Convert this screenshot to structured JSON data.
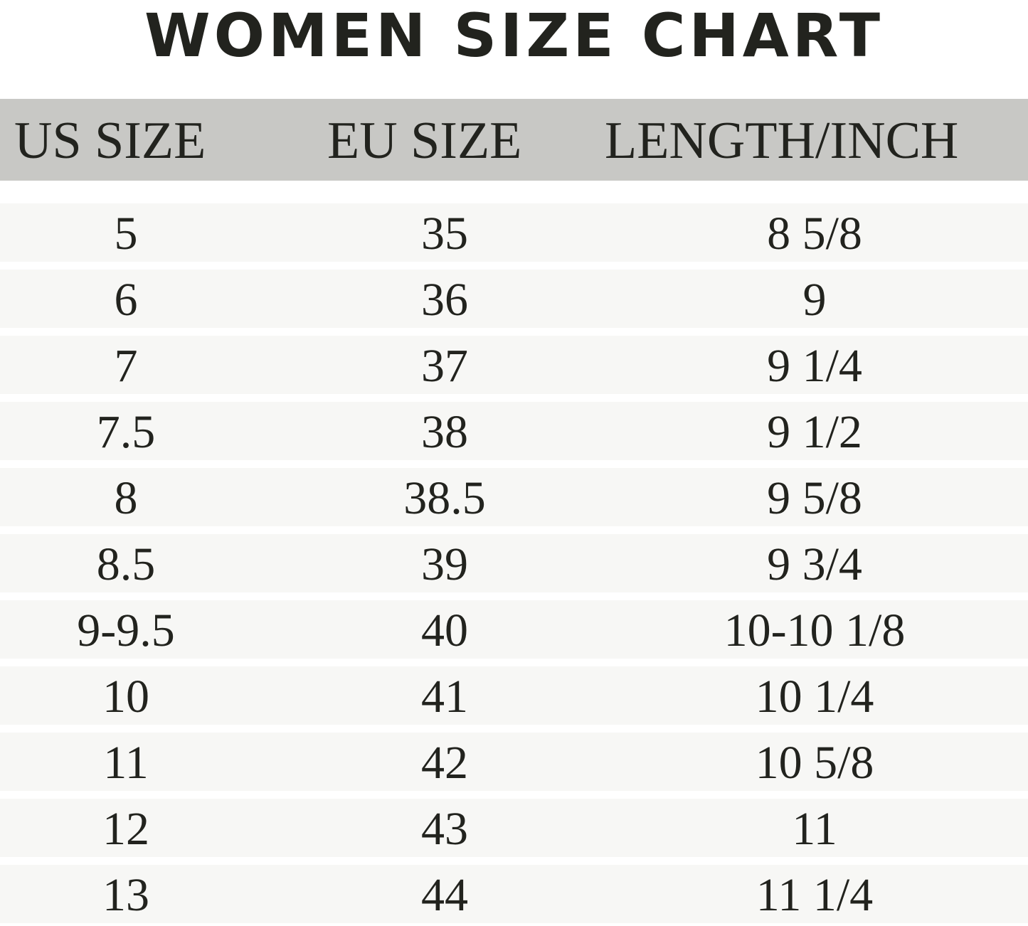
{
  "title": "WOMEN SIZE CHART",
  "colors": {
    "header_bg": "#c8c8c5",
    "row_bg": "#f7f7f5",
    "text": "#22231e"
  },
  "chart_data": {
    "type": "table",
    "title": "WOMEN SIZE CHART",
    "columns": [
      "US SIZE",
      "EU SIZE",
      "LENGTH/INCH"
    ],
    "rows": [
      [
        "5",
        "35",
        "8 5/8"
      ],
      [
        "6",
        "36",
        "9"
      ],
      [
        "7",
        "37",
        "9 1/4"
      ],
      [
        "7.5",
        "38",
        "9 1/2"
      ],
      [
        "8",
        "38.5",
        "9 5/8"
      ],
      [
        "8.5",
        "39",
        "9 3/4"
      ],
      [
        "9-9.5",
        "40",
        "10-10 1/8"
      ],
      [
        "10",
        "41",
        "10 1/4"
      ],
      [
        "11",
        "42",
        "10 5/8"
      ],
      [
        "12",
        "43",
        "11"
      ],
      [
        "13",
        "44",
        "11 1/4"
      ]
    ]
  }
}
